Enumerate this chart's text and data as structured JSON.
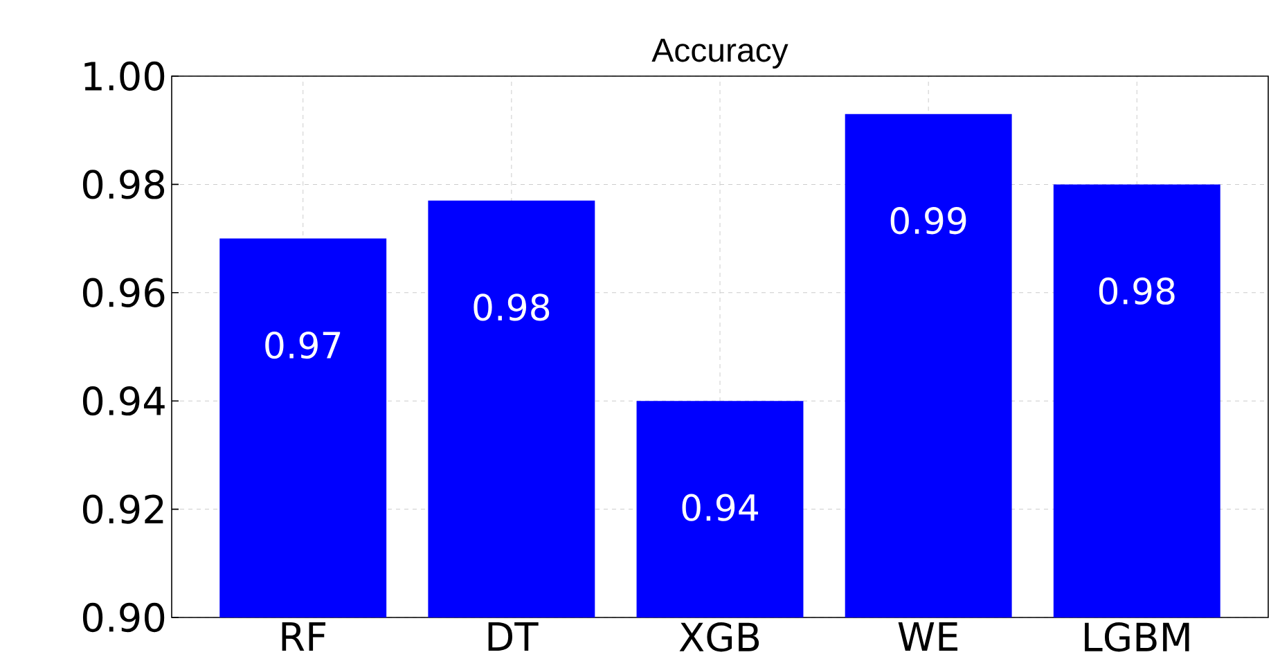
{
  "chart_data": {
    "type": "bar",
    "title": "Accuracy",
    "categories": [
      "RF",
      "DT",
      "XGB",
      "WE",
      "LGBM"
    ],
    "values": [
      0.97,
      0.977,
      0.94,
      0.993,
      0.98
    ],
    "value_labels": [
      "0.97",
      "0.98",
      "0.94",
      "0.99",
      "0.98"
    ],
    "color": "#0000ff",
    "ylim": [
      0.9,
      1.0
    ],
    "yticks": [
      {
        "value": 0.9,
        "label": "0.90"
      },
      {
        "value": 0.92,
        "label": "0.92"
      },
      {
        "value": 0.94,
        "label": "0.94"
      },
      {
        "value": 0.96,
        "label": "0.96"
      },
      {
        "value": 0.98,
        "label": "0.98"
      },
      {
        "value": 1.0,
        "label": "1.00"
      }
    ],
    "grid": true
  }
}
